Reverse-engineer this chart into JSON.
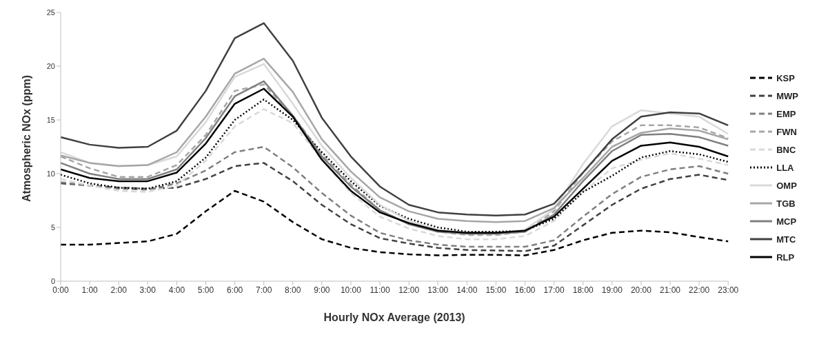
{
  "chart_data": {
    "type": "line",
    "xlabel": "Hourly NOx Average (2013)",
    "ylabel": "Atmospheric NOx (ppm)",
    "categories": [
      "0:00",
      "1:00",
      "2:00",
      "3:00",
      "4:00",
      "5:00",
      "6:00",
      "7:00",
      "8:00",
      "9:00",
      "10:00",
      "11:00",
      "12:00",
      "13:00",
      "14:00",
      "15:00",
      "16:00",
      "17:00",
      "18:00",
      "19:00",
      "20:00",
      "21:00",
      "22:00",
      "23:00"
    ],
    "ylim": [
      0,
      25
    ],
    "yticks": [
      0,
      5,
      10,
      15,
      20,
      25
    ],
    "grid": false,
    "legend": "right",
    "marker": "none",
    "series": [
      {
        "name": "KSP",
        "color": "#000000",
        "line_style": "dashed",
        "values": [
          3.4,
          3.4,
          3.55,
          3.7,
          4.4,
          6.5,
          8.4,
          7.4,
          5.5,
          3.9,
          3.1,
          2.7,
          2.5,
          2.4,
          2.45,
          2.45,
          2.4,
          2.9,
          3.8,
          4.5,
          4.7,
          4.55,
          4.1,
          3.7
        ]
      },
      {
        "name": "MWP",
        "color": "#404040",
        "line_style": "dashed",
        "values": [
          9.1,
          8.9,
          8.7,
          8.6,
          8.7,
          9.5,
          10.7,
          11.0,
          9.3,
          7.1,
          5.3,
          4.0,
          3.5,
          3.1,
          2.9,
          2.85,
          2.8,
          3.3,
          5.2,
          7.1,
          8.6,
          9.5,
          9.9,
          9.4
        ]
      },
      {
        "name": "EMP",
        "color": "#7f7f7f",
        "line_style": "dashed",
        "values": [
          9.2,
          8.9,
          8.6,
          8.5,
          9.1,
          10.3,
          12.0,
          12.5,
          10.6,
          8.2,
          6.1,
          4.5,
          3.8,
          3.4,
          3.2,
          3.2,
          3.2,
          3.8,
          6.0,
          8.1,
          9.7,
          10.4,
          10.7,
          10.0
        ]
      },
      {
        "name": "FWN",
        "color": "#a6a6a6",
        "line_style": "dashed",
        "values": [
          11.6,
          10.5,
          9.7,
          9.7,
          10.8,
          13.6,
          17.7,
          18.3,
          15.4,
          11.8,
          9.0,
          6.6,
          5.3,
          4.6,
          4.3,
          4.3,
          4.6,
          6.5,
          10.1,
          13.0,
          14.5,
          14.5,
          14.3,
          13.3
        ]
      },
      {
        "name": "BNC",
        "color": "#d9d9d9",
        "line_style": "dashed",
        "values": [
          9.5,
          8.9,
          8.4,
          8.3,
          8.9,
          11.2,
          14.4,
          16.0,
          14.7,
          11.3,
          8.2,
          6.0,
          4.9,
          4.2,
          3.9,
          3.9,
          4.2,
          5.6,
          8.3,
          10.5,
          11.3,
          11.9,
          11.4,
          10.8
        ]
      },
      {
        "name": "LLA",
        "color": "#000000",
        "line_style": "dotted",
        "values": [
          9.9,
          9.1,
          8.7,
          8.6,
          9.3,
          11.5,
          15.0,
          16.9,
          15.0,
          12.0,
          9.3,
          7.0,
          5.8,
          5.0,
          4.6,
          4.6,
          4.7,
          5.8,
          8.3,
          9.8,
          11.5,
          12.1,
          11.8,
          11.1
        ]
      },
      {
        "name": "OMP",
        "color": "#d9d9d9",
        "line_style": "solid",
        "values": [
          12.0,
          11.0,
          10.7,
          10.8,
          11.6,
          14.8,
          19.0,
          20.2,
          16.5,
          12.6,
          9.6,
          7.1,
          5.6,
          4.8,
          4.5,
          4.4,
          4.8,
          6.7,
          10.9,
          14.4,
          15.9,
          15.6,
          15.3,
          13.7
        ]
      },
      {
        "name": "TGB",
        "color": "#a6a6a6",
        "line_style": "solid",
        "values": [
          11.7,
          11.0,
          10.7,
          10.8,
          12.0,
          15.3,
          19.3,
          20.7,
          17.6,
          13.2,
          10.2,
          7.8,
          6.5,
          5.8,
          5.6,
          5.5,
          5.6,
          6.8,
          9.6,
          12.5,
          13.8,
          14.2,
          14.0,
          13.2
        ]
      },
      {
        "name": "MCP",
        "color": "#7f7f7f",
        "line_style": "solid",
        "values": [
          11.0,
          10.0,
          9.5,
          9.5,
          10.4,
          13.3,
          17.2,
          18.6,
          15.4,
          11.6,
          8.8,
          6.6,
          5.3,
          4.6,
          4.4,
          4.4,
          4.6,
          6.2,
          9.3,
          12.1,
          13.6,
          13.7,
          13.4,
          12.6
        ]
      },
      {
        "name": "MTC",
        "color": "#404040",
        "line_style": "solid",
        "values": [
          13.4,
          12.7,
          12.4,
          12.5,
          14.0,
          17.7,
          22.6,
          24.0,
          20.5,
          15.2,
          11.6,
          8.8,
          7.1,
          6.4,
          6.2,
          6.1,
          6.2,
          7.2,
          10.1,
          13.2,
          15.3,
          15.7,
          15.6,
          14.5
        ]
      },
      {
        "name": "RLP",
        "color": "#000000",
        "line_style": "solid",
        "values": [
          10.4,
          9.6,
          9.3,
          9.3,
          10.1,
          12.8,
          16.5,
          17.9,
          15.3,
          11.3,
          8.4,
          6.4,
          5.4,
          4.7,
          4.5,
          4.5,
          4.7,
          6.0,
          8.6,
          11.2,
          12.6,
          12.9,
          12.5,
          11.6
        ]
      }
    ]
  }
}
